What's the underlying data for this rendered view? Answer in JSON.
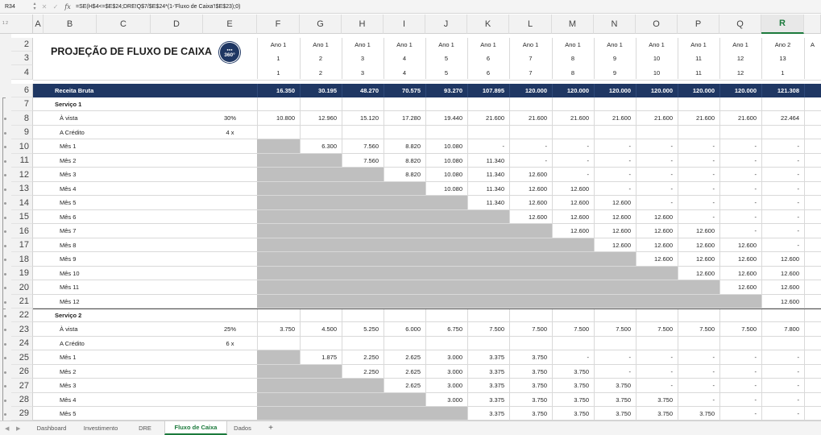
{
  "formula_bar": {
    "cell_ref": "R34",
    "formula": "=SE(H$4<=$E$24;DRE!Q$7/$E$24*(1-'Fluxo de Caixa'!$E$23);0)"
  },
  "columns": [
    "A",
    "B",
    "C",
    "D",
    "E",
    "F",
    "G",
    "H",
    "I",
    "J",
    "K",
    "L",
    "M",
    "N",
    "O",
    "P",
    "Q",
    "R"
  ],
  "selected_column": "R",
  "outline_levels": [
    "1",
    "2"
  ],
  "rows": [
    {
      "n": "2",
      "type": "hdr",
      "cells": [
        "Ano 1",
        "Ano 1",
        "Ano 1",
        "Ano 1",
        "Ano 1",
        "Ano 1",
        "Ano 1",
        "Ano 1",
        "Ano 1",
        "Ano 1",
        "Ano 1",
        "Ano 1",
        "Ano 2",
        "A"
      ]
    },
    {
      "n": "3",
      "type": "hdr",
      "cells": [
        "1",
        "2",
        "3",
        "4",
        "5",
        "6",
        "7",
        "8",
        "9",
        "10",
        "11",
        "12",
        "13",
        ""
      ]
    },
    {
      "n": "4",
      "type": "hdr",
      "cells": [
        "1",
        "2",
        "3",
        "4",
        "5",
        "6",
        "7",
        "8",
        "9",
        "10",
        "11",
        "12",
        "1",
        ""
      ]
    },
    {
      "n": "6",
      "type": "band",
      "label": "Receita Bruta",
      "cells": [
        "16.350",
        "30.195",
        "48.270",
        "70.575",
        "93.270",
        "107.895",
        "120.000",
        "120.000",
        "120.000",
        "120.000",
        "120.000",
        "120.000",
        "121.308"
      ]
    },
    {
      "n": "7",
      "type": "section",
      "label": "Serviço 1"
    },
    {
      "n": "8",
      "type": "data",
      "label": "À vista",
      "e": "30%",
      "cells": [
        "10.800",
        "12.960",
        "15.120",
        "17.280",
        "19.440",
        "21.600",
        "21.600",
        "21.600",
        "21.600",
        "21.600",
        "21.600",
        "21.600",
        "22.464"
      ]
    },
    {
      "n": "9",
      "type": "data",
      "label": "A Crédito",
      "e": "4 x",
      "cells": [
        "",
        "",
        "",
        "",
        "",
        "",
        "",
        "",
        "",
        "",
        "",
        "",
        ""
      ]
    },
    {
      "n": "10",
      "type": "data",
      "label": "Mês 1",
      "gray": [
        0
      ],
      "cells": [
        "",
        "6.300",
        "7.560",
        "8.820",
        "10.080",
        "-",
        "-",
        "-",
        "-",
        "-",
        "-",
        "-",
        "-"
      ]
    },
    {
      "n": "11",
      "type": "data",
      "label": "Mês 2",
      "gray": [
        0,
        1
      ],
      "cells": [
        "",
        "",
        "7.560",
        "8.820",
        "10.080",
        "11.340",
        "-",
        "-",
        "-",
        "-",
        "-",
        "-",
        "-"
      ]
    },
    {
      "n": "12",
      "type": "data",
      "label": "Mês 3",
      "gray": [
        0,
        1,
        2
      ],
      "cells": [
        "",
        "",
        "",
        "8.820",
        "10.080",
        "11.340",
        "12.600",
        "-",
        "-",
        "-",
        "-",
        "-",
        "-"
      ]
    },
    {
      "n": "13",
      "type": "data",
      "label": "Mês 4",
      "gray": [
        0,
        1,
        2,
        3
      ],
      "cells": [
        "",
        "",
        "",
        "",
        "10.080",
        "11.340",
        "12.600",
        "12.600",
        "-",
        "-",
        "-",
        "-",
        "-"
      ]
    },
    {
      "n": "14",
      "type": "data",
      "label": "Mês 5",
      "gray": [
        0,
        1,
        2,
        3,
        4
      ],
      "cells": [
        "",
        "",
        "",
        "",
        "",
        "11.340",
        "12.600",
        "12.600",
        "12.600",
        "-",
        "-",
        "-",
        "-"
      ]
    },
    {
      "n": "15",
      "type": "data",
      "label": "Mês 6",
      "gray": [
        0,
        1,
        2,
        3,
        4,
        5
      ],
      "cells": [
        "",
        "",
        "",
        "",
        "",
        "",
        "12.600",
        "12.600",
        "12.600",
        "12.600",
        "-",
        "-",
        "-"
      ]
    },
    {
      "n": "16",
      "type": "data",
      "label": "Mês 7",
      "gray": [
        0,
        1,
        2,
        3,
        4,
        5,
        6
      ],
      "cells": [
        "",
        "",
        "",
        "",
        "",
        "",
        "",
        "12.600",
        "12.600",
        "12.600",
        "12.600",
        "-",
        "-"
      ]
    },
    {
      "n": "17",
      "type": "data",
      "label": "Mês 8",
      "gray": [
        0,
        1,
        2,
        3,
        4,
        5,
        6,
        7
      ],
      "cells": [
        "",
        "",
        "",
        "",
        "",
        "",
        "",
        "",
        "12.600",
        "12.600",
        "12.600",
        "12.600",
        "-"
      ]
    },
    {
      "n": "18",
      "type": "data",
      "label": "Mês 9",
      "gray": [
        0,
        1,
        2,
        3,
        4,
        5,
        6,
        7,
        8
      ],
      "cells": [
        "",
        "",
        "",
        "",
        "",
        "",
        "",
        "",
        "",
        "12.600",
        "12.600",
        "12.600",
        "12.600"
      ]
    },
    {
      "n": "19",
      "type": "data",
      "label": "Mês 10",
      "gray": [
        0,
        1,
        2,
        3,
        4,
        5,
        6,
        7,
        8,
        9
      ],
      "cells": [
        "",
        "",
        "",
        "",
        "",
        "",
        "",
        "",
        "",
        "",
        "12.600",
        "12.600",
        "12.600"
      ]
    },
    {
      "n": "20",
      "type": "data",
      "label": "Mês 11",
      "gray": [
        0,
        1,
        2,
        3,
        4,
        5,
        6,
        7,
        8,
        9,
        10
      ],
      "cells": [
        "",
        "",
        "",
        "",
        "",
        "",
        "",
        "",
        "",
        "",
        "",
        "12.600",
        "12.600"
      ]
    },
    {
      "n": "21",
      "type": "data",
      "label": "Mês 12",
      "gray": [
        0,
        1,
        2,
        3,
        4,
        5,
        6,
        7,
        8,
        9,
        10,
        11
      ],
      "cells": [
        "",
        "",
        "",
        "",
        "",
        "",
        "",
        "",
        "",
        "",
        "",
        "",
        "12.600"
      ]
    },
    {
      "n": "22",
      "type": "section",
      "label": "Serviço 2"
    },
    {
      "n": "23",
      "type": "data",
      "label": "À vista",
      "e": "25%",
      "cells": [
        "3.750",
        "4.500",
        "5.250",
        "6.000",
        "6.750",
        "7.500",
        "7.500",
        "7.500",
        "7.500",
        "7.500",
        "7.500",
        "7.500",
        "7.800"
      ]
    },
    {
      "n": "24",
      "type": "data",
      "label": "A Crédito",
      "e": "6 x",
      "cells": [
        "",
        "",
        "",
        "",
        "",
        "",
        "",
        "",
        "",
        "",
        "",
        "",
        ""
      ]
    },
    {
      "n": "25",
      "type": "data",
      "label": "Mês 1",
      "gray": [
        0
      ],
      "cells": [
        "",
        "1.875",
        "2.250",
        "2.625",
        "3.000",
        "3.375",
        "3.750",
        "-",
        "-",
        "-",
        "-",
        "-",
        "-"
      ]
    },
    {
      "n": "26",
      "type": "data",
      "label": "Mês 2",
      "gray": [
        0,
        1
      ],
      "cells": [
        "",
        "",
        "2.250",
        "2.625",
        "3.000",
        "3.375",
        "3.750",
        "3.750",
        "-",
        "-",
        "-",
        "-",
        "-"
      ]
    },
    {
      "n": "27",
      "type": "data",
      "label": "Mês 3",
      "gray": [
        0,
        1,
        2
      ],
      "cells": [
        "",
        "",
        "",
        "2.625",
        "3.000",
        "3.375",
        "3.750",
        "3.750",
        "3.750",
        "-",
        "-",
        "-",
        "-"
      ]
    },
    {
      "n": "28",
      "type": "data",
      "label": "Mês 4",
      "gray": [
        0,
        1,
        2,
        3
      ],
      "cells": [
        "",
        "",
        "",
        "",
        "3.000",
        "3.375",
        "3.750",
        "3.750",
        "3.750",
        "3.750",
        "-",
        "-",
        "-"
      ]
    },
    {
      "n": "29",
      "type": "data",
      "label": "Mês 5",
      "gray": [
        0,
        1,
        2,
        3,
        4
      ],
      "cells": [
        "",
        "",
        "",
        "",
        "",
        "3.375",
        "3.750",
        "3.750",
        "3.750",
        "3.750",
        "3.750",
        "-",
        "-"
      ]
    }
  ],
  "title": "PROJEÇÃO DE FLUXO DE CAIXA",
  "logo_text": "360°",
  "tabs": [
    "Dashboard",
    "Investimento",
    "DRE",
    "Fluxo de Caixa",
    "Dados"
  ],
  "active_tab": "Fluxo de Caixa",
  "add_tab_label": "+",
  "colors": {
    "band": "#1f3763",
    "gray": "#bfbfbf",
    "accent": "#1c7a3c"
  }
}
